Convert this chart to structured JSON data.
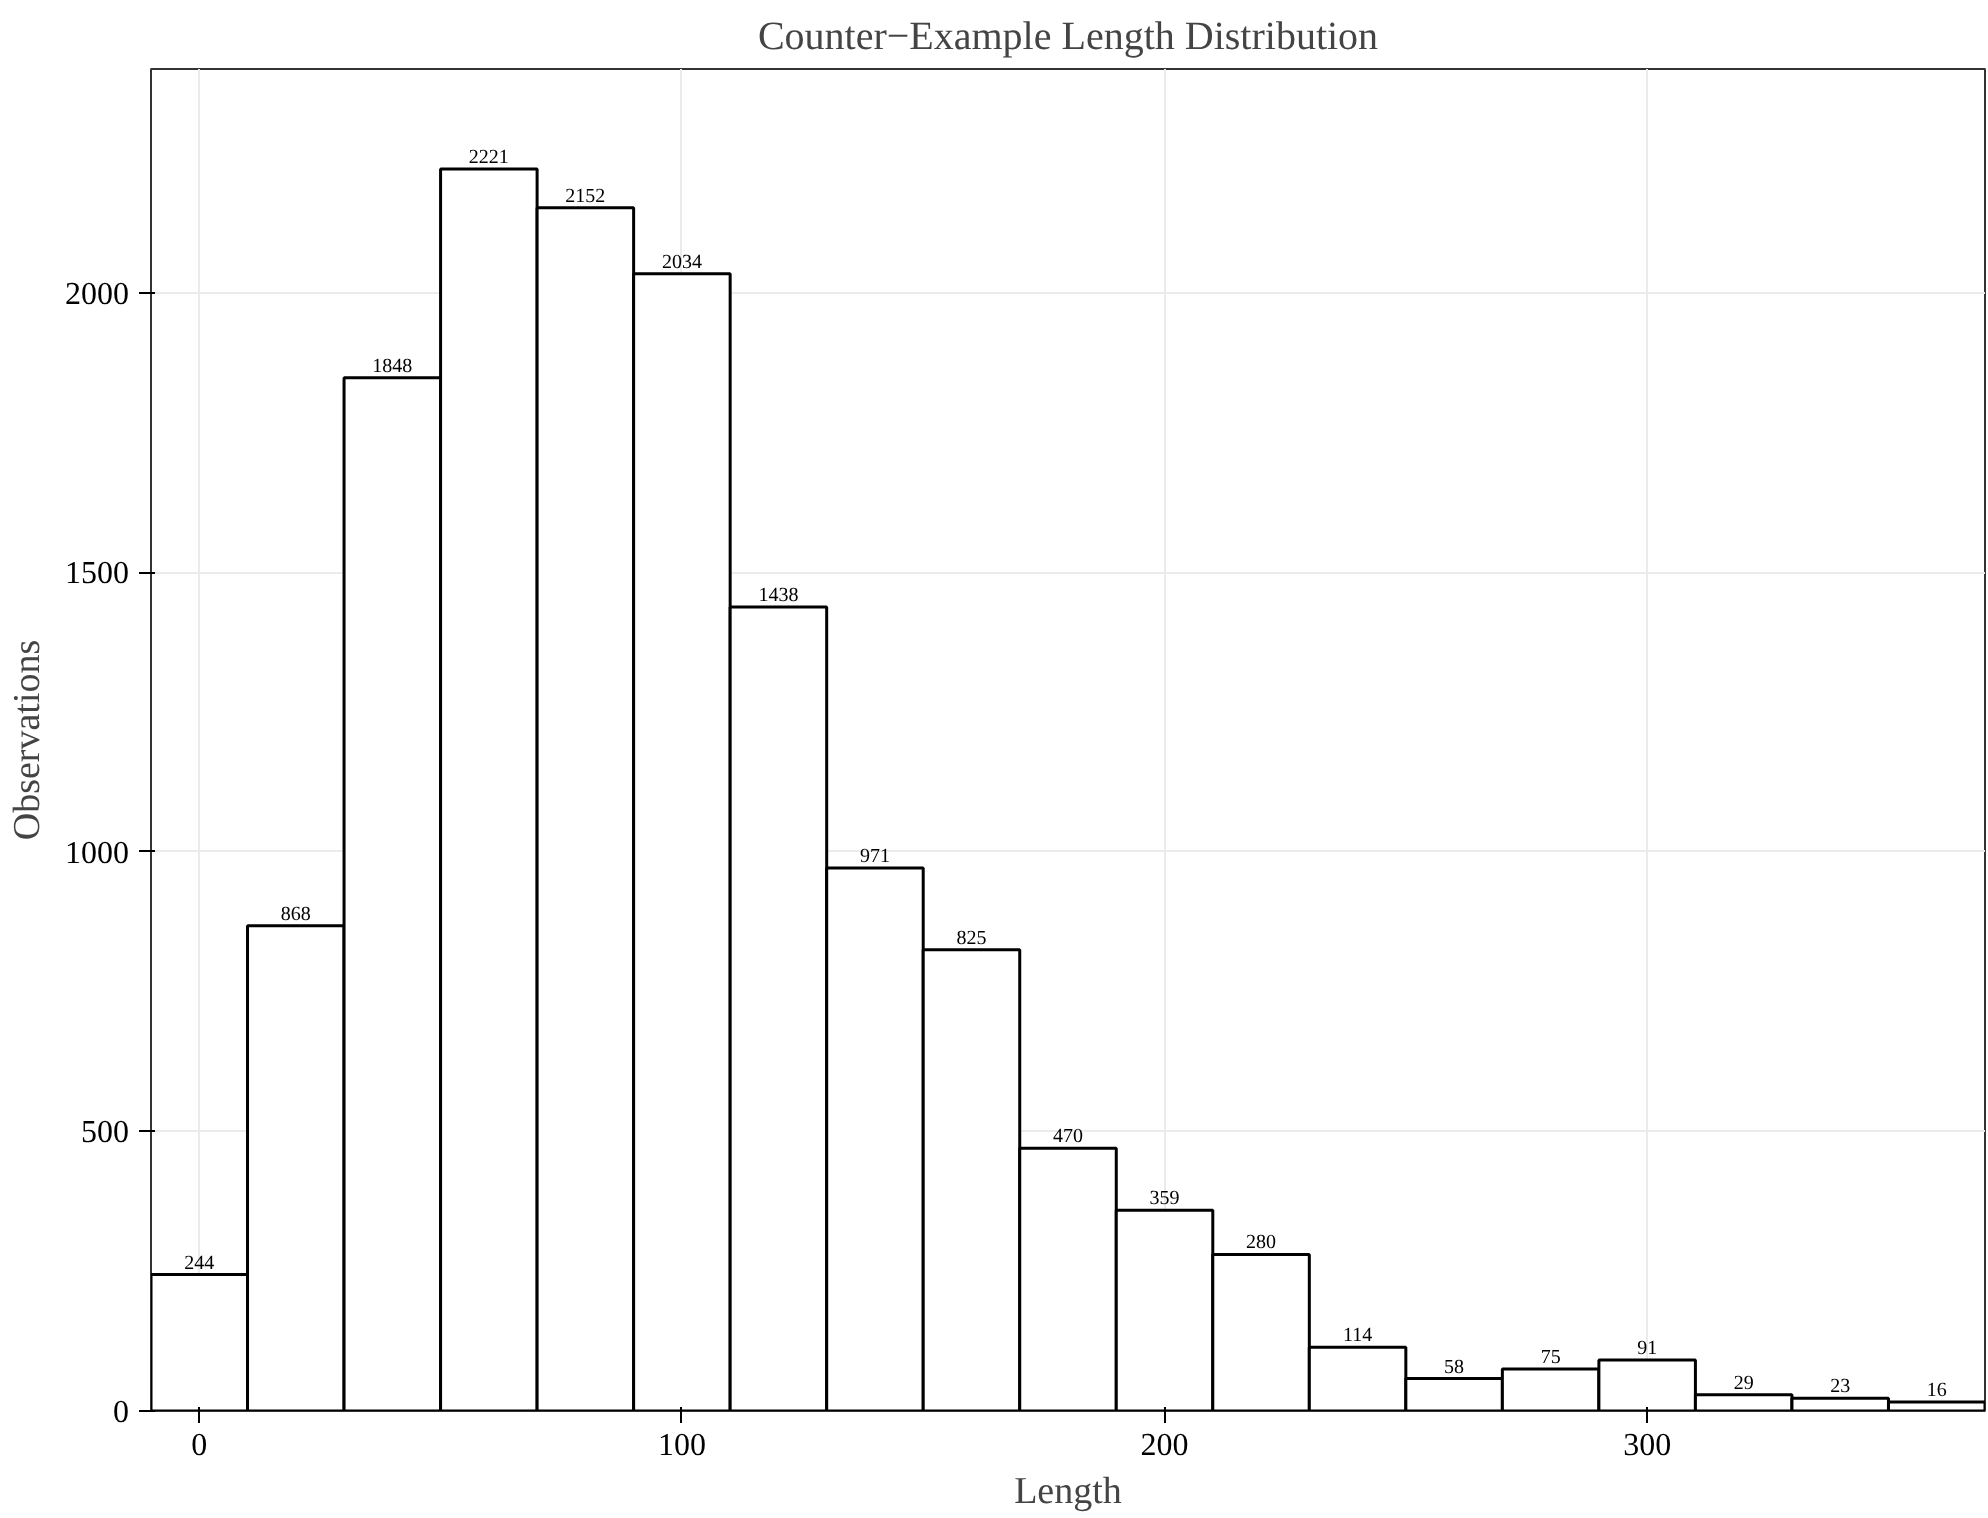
{
  "chart_data": {
    "type": "histogram",
    "title": "Counter−Example Length Distribution",
    "xlabel": "Length",
    "ylabel": "Observations",
    "bins": [
      -10,
      10,
      30,
      50,
      70,
      90,
      110,
      130,
      150,
      170,
      190,
      210,
      230,
      250,
      270,
      290,
      310,
      330,
      350,
      370
    ],
    "values": [
      244,
      868,
      1848,
      2221,
      2152,
      2034,
      1438,
      971,
      825,
      470,
      359,
      280,
      114,
      58,
      75,
      91,
      29,
      23,
      16
    ],
    "color": "#ffffff",
    "xlim": [
      -10,
      370
    ],
    "ylim": [
      0,
      2400
    ],
    "xticks": [
      0,
      100,
      200,
      300
    ],
    "yticks": [
      0,
      500,
      1000,
      1500,
      2000
    ],
    "grid": true,
    "data_labels": true
  }
}
